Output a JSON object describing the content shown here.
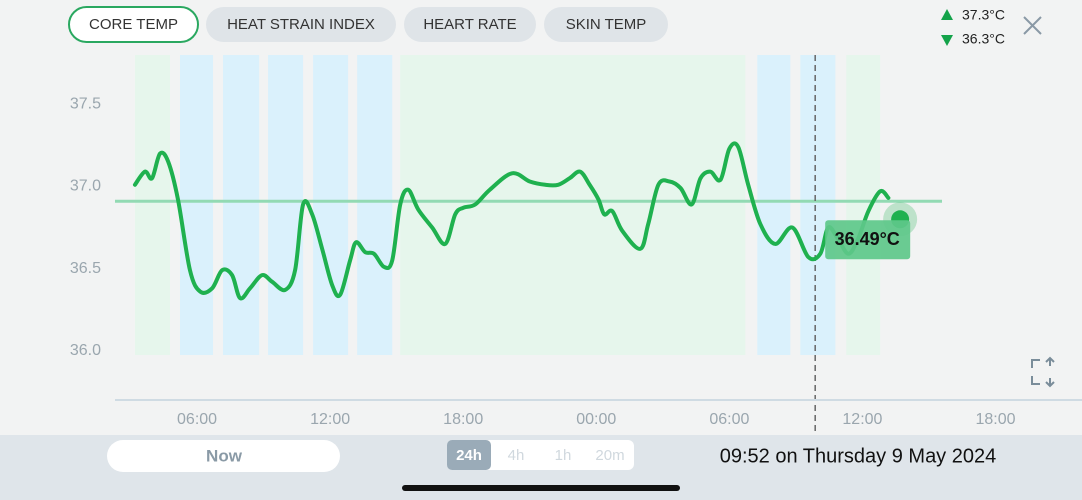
{
  "tabs": [
    {
      "label": "CORE TEMP",
      "selected": true
    },
    {
      "label": "HEAT STRAIN INDEX",
      "selected": false
    },
    {
      "label": "HEART RATE",
      "selected": false
    },
    {
      "label": "SKIN TEMP",
      "selected": false
    }
  ],
  "legend": {
    "high": "37.3°C",
    "low": "36.3°C"
  },
  "chart_data": {
    "type": "line",
    "xlim": [
      2.3,
      45.9
    ],
    "ylim": [
      35.7,
      37.8
    ],
    "xticks": [
      {
        "value": 6,
        "label": "06:00"
      },
      {
        "value": 12,
        "label": "12:00"
      },
      {
        "value": 18,
        "label": "18:00"
      },
      {
        "value": 24,
        "label": "00:00"
      },
      {
        "value": 30,
        "label": "06:00"
      },
      {
        "value": 36,
        "label": "12:00"
      },
      {
        "value": 42,
        "label": "18:00"
      }
    ],
    "yticks": [
      {
        "value": 36,
        "label": "36.0"
      },
      {
        "value": 36.5,
        "label": "36.5"
      },
      {
        "value": 37,
        "label": "37.0"
      },
      {
        "value": 37.5,
        "label": "37.5"
      }
    ],
    "bands": [
      {
        "x": [
          3.2,
          4.78
        ],
        "color": "#e6f6ec"
      },
      {
        "x": [
          5.23,
          6.72
        ],
        "color": "#daf1fc"
      },
      {
        "x": [
          7.17,
          8.8
        ],
        "color": "#daf1fc"
      },
      {
        "x": [
          9.2,
          10.78
        ],
        "color": "#daf1fc"
      },
      {
        "x": [
          11.23,
          12.81
        ],
        "color": "#daf1fc"
      },
      {
        "x": [
          13.22,
          14.8
        ],
        "color": "#daf1fc"
      },
      {
        "x": [
          15.16,
          30.72
        ],
        "color": "#e6f6ec"
      },
      {
        "x": [
          31.26,
          32.75
        ],
        "color": "#daf1fc"
      },
      {
        "x": [
          33.2,
          34.78
        ],
        "color": "#daf1fc"
      },
      {
        "x": [
          35.27,
          36.8
        ],
        "color": "#e6f6ec"
      }
    ],
    "reference": {
      "value": 36.91,
      "color": "#92dab3"
    },
    "series": [
      {
        "color": "#1fb14f",
        "x": [
          3.2,
          3.65,
          3.97,
          4.33,
          4.7,
          5.14,
          5.68,
          6.14,
          6.68,
          7.13,
          7.58,
          7.94,
          8.39,
          8.93,
          9.38,
          9.97,
          10.42,
          10.78,
          11.19,
          11.64,
          12.09,
          12.45,
          12.9,
          13.17,
          13.58,
          13.98,
          14.43,
          14.8,
          15.16,
          15.52,
          15.97,
          16.6,
          17.19,
          17.64,
          18.0,
          18.54,
          19.2,
          20.2,
          21.0,
          21.7,
          22.28,
          22.8,
          23.27,
          23.7,
          24.1,
          24.36,
          24.72,
          25.17,
          25.98,
          26.34,
          26.8,
          27.3,
          27.8,
          28.3,
          28.7,
          29.14,
          29.6,
          30.0,
          30.4,
          30.85,
          31.4,
          32.07,
          32.84,
          33.56,
          34.1,
          34.46,
          34.9,
          35.37,
          35.8,
          36.27,
          36.8,
          37.17
        ],
        "values": [
          37.01,
          37.09,
          37.05,
          37.2,
          37.15,
          36.92,
          36.49,
          36.36,
          36.38,
          36.49,
          36.46,
          36.32,
          36.38,
          36.46,
          36.42,
          36.37,
          36.49,
          36.89,
          36.83,
          36.62,
          36.4,
          36.34,
          36.55,
          36.66,
          36.6,
          36.59,
          36.51,
          36.55,
          36.89,
          36.98,
          36.86,
          36.75,
          36.65,
          36.83,
          36.87,
          36.89,
          36.98,
          37.08,
          37.03,
          37.01,
          37.01,
          37.05,
          37.09,
          37.01,
          36.92,
          36.83,
          36.85,
          36.73,
          36.62,
          36.77,
          37.01,
          37.03,
          36.99,
          36.89,
          37.05,
          37.09,
          37.04,
          37.23,
          37.24,
          37.01,
          36.77,
          36.65,
          36.75,
          36.57,
          36.59,
          36.75,
          36.68,
          36.59,
          36.68,
          36.85,
          36.97,
          36.93
        ]
      }
    ],
    "marker": {
      "x": 37.7,
      "value": 36.8
    },
    "cursor": {
      "x": 33.87,
      "value": 36.49,
      "value_label": "36.49°C"
    }
  },
  "footer": {
    "now_button": "Now",
    "periods": [
      {
        "label": "24h",
        "selected": true
      },
      {
        "label": "4h",
        "selected": false
      },
      {
        "label": "1h",
        "selected": false
      },
      {
        "label": "20m",
        "selected": false
      }
    ],
    "timestamp": "09:52 on Thursday 9 May 2024"
  }
}
